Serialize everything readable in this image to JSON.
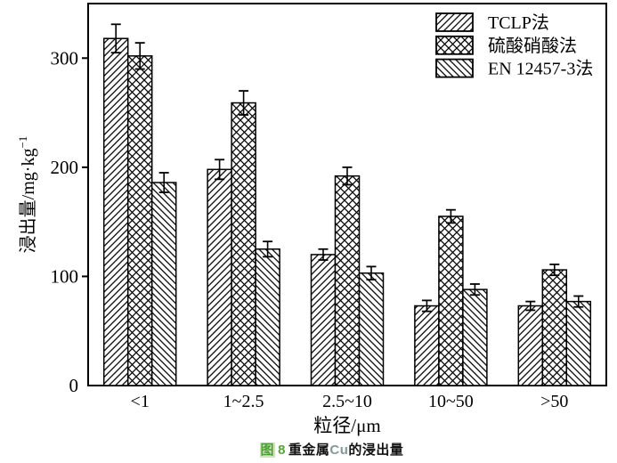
{
  "caption": {
    "figure_marker": "图",
    "figure_number": "8",
    "text_before_element": "重金属",
    "element_symbol": "Cu",
    "text_after_element": "的浸出量",
    "marker_color": "#4f9e38",
    "marker_bg": "#cfe3bd",
    "number_color": "#55a33a",
    "element_color": "#7f9b99",
    "text_color": "#111111"
  },
  "chart_data": {
    "type": "bar",
    "title": "",
    "categories": [
      "<1",
      "1~2.5",
      "2.5~10",
      "10~50",
      ">50"
    ],
    "series": [
      {
        "name": "TCLP法",
        "pattern": "diagonal-forward",
        "values": [
          318,
          198,
          120,
          73,
          73
        ],
        "errors": [
          13,
          9,
          5,
          5,
          4
        ]
      },
      {
        "name": "硫酸硝酸法",
        "pattern": "crosshatch",
        "values": [
          302,
          259,
          192,
          155,
          106
        ],
        "errors": [
          12,
          11,
          8,
          6,
          5
        ]
      },
      {
        "name": "EN 12457-3法",
        "pattern": "diagonal-backward",
        "values": [
          186,
          125,
          103,
          88,
          77
        ],
        "errors": [
          9,
          7,
          6,
          5,
          5
        ]
      }
    ],
    "xlabel": "粒径/μm",
    "ylabel": "浸出量/mg·kg⁻¹",
    "ylabel_main": "浸出量/mg·kg",
    "ylabel_superscript": "−1",
    "ylim": [
      0,
      350
    ],
    "yticks": [
      0,
      100,
      200,
      300
    ],
    "grid": false,
    "legend_position": "top-right",
    "bar_fill": "#ffffff",
    "line_color": "#000000",
    "bars_have_error_bars": true
  }
}
